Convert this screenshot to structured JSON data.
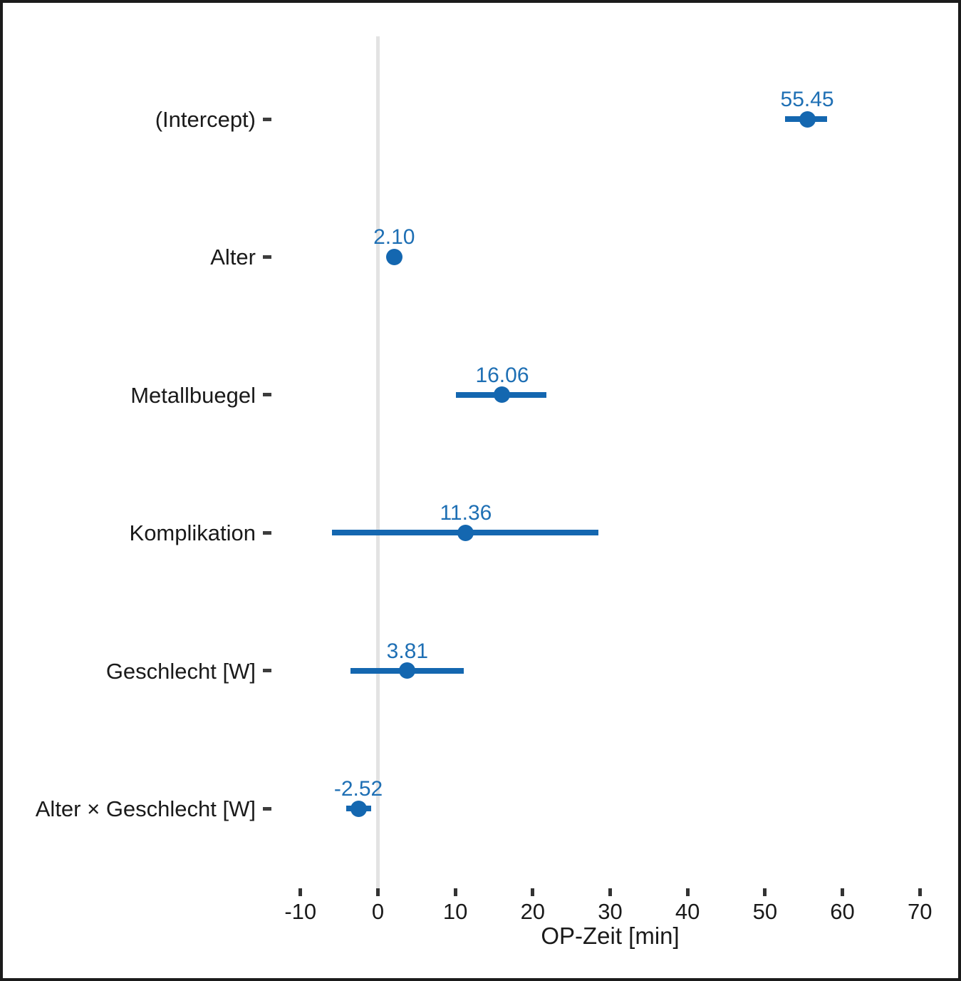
{
  "figure": {
    "background": "#ffffff",
    "border_color": "#1b1b1b"
  },
  "chart_data": {
    "type": "scatter",
    "subtype": "coefficient-forest-plot",
    "title": "",
    "xlabel": "OP-Zeit [min]",
    "ylabel": "",
    "xlim": [
      -13.2,
      73.2
    ],
    "x_ticks": [
      -10,
      0,
      10,
      20,
      30,
      40,
      50,
      60,
      70
    ],
    "reference_line_x": 0,
    "grid": false,
    "legend": false,
    "rows": [
      {
        "category": "(Intercept)",
        "estimate": 55.45,
        "estimate_label": "55.45",
        "ci_low": 52.6,
        "ci_high": 58.0
      },
      {
        "category": "Alter",
        "estimate": 2.1,
        "estimate_label": "2.10",
        "ci_low": 1.6,
        "ci_high": 2.6
      },
      {
        "category": "Metallbuegel",
        "estimate": 16.06,
        "estimate_label": "16.06",
        "ci_low": 10.1,
        "ci_high": 21.8
      },
      {
        "category": "Komplikation",
        "estimate": 11.36,
        "estimate_label": "11.36",
        "ci_low": -5.9,
        "ci_high": 28.5
      },
      {
        "category": "Geschlecht [W]",
        "estimate": 3.81,
        "estimate_label": "3.81",
        "ci_low": -3.5,
        "ci_high": 11.1
      },
      {
        "category": "Alter × Geschlecht [W]",
        "estimate": -2.52,
        "estimate_label": "-2.52",
        "ci_low": -4.1,
        "ci_high": -0.9
      }
    ],
    "colors": {
      "marker": "#1467b0",
      "value_label": "#1e6fb4",
      "reference_line": "#e3e3e3",
      "axis_text": "#1a1a1a",
      "y_tick": "#3d3d3d",
      "x_tick": "#333333"
    }
  }
}
